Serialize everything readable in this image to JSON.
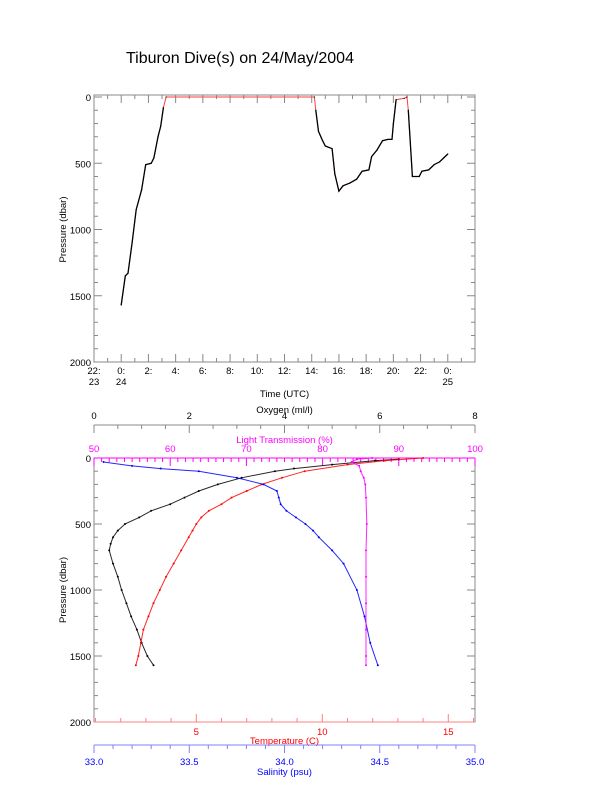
{
  "title": "Tiburon Dive(s) on 24/May/2004",
  "chart_data": [
    {
      "type": "line",
      "xlabel": "Time (UTC)",
      "ylabel": "Pressure (dbar)",
      "xlim_hours_from_0000_24May": [
        -2,
        26
      ],
      "ylim": [
        2000,
        0
      ],
      "x_tick_labels": [
        {
          "h": -2,
          "top": "22:",
          "bottom": "23"
        },
        {
          "h": 0,
          "top": "0:",
          "bottom": "24"
        },
        {
          "h": 2,
          "top": "2:",
          "bottom": ""
        },
        {
          "h": 4,
          "top": "4:",
          "bottom": ""
        },
        {
          "h": 6,
          "top": "6:",
          "bottom": ""
        },
        {
          "h": 8,
          "top": "8:",
          "bottom": ""
        },
        {
          "h": 10,
          "top": "10:",
          "bottom": ""
        },
        {
          "h": 12,
          "top": "12:",
          "bottom": ""
        },
        {
          "h": 14,
          "top": "14:",
          "bottom": ""
        },
        {
          "h": 16,
          "top": "16:",
          "bottom": ""
        },
        {
          "h": 18,
          "top": "18:",
          "bottom": ""
        },
        {
          "h": 20,
          "top": "20:",
          "bottom": ""
        },
        {
          "h": 22,
          "top": "22:",
          "bottom": ""
        },
        {
          "h": 24,
          "top": "0:",
          "bottom": "25"
        }
      ],
      "y_ticks": [
        0,
        500,
        1000,
        1500,
        2000
      ],
      "colors": {
        "line": "#000000",
        "overlay": "#ff4040"
      },
      "series": [
        {
          "x_hours": [
            0,
            0.3,
            0.5,
            0.8,
            1.1,
            1.5,
            1.8,
            2.2,
            2.4,
            2.7,
            2.9,
            3.1,
            3.3,
            14.2,
            14.3,
            14.5,
            14.8,
            15.0,
            15.5,
            15.7,
            16.0,
            16.3,
            16.8,
            17.3,
            17.7,
            18.2,
            18.4,
            18.8,
            19.2,
            19.6,
            19.9,
            20.0,
            20.2,
            20.8,
            21.0,
            21.1,
            21.4,
            21.9,
            22.1,
            22.6,
            23.0,
            23.4,
            23.7,
            24.0
          ],
          "pressure": [
            1570,
            1350,
            1330,
            1100,
            850,
            700,
            510,
            500,
            460,
            300,
            220,
            80,
            0,
            0,
            100,
            260,
            330,
            370,
            390,
            580,
            710,
            670,
            650,
            620,
            560,
            550,
            450,
            400,
            330,
            320,
            320,
            200,
            20,
            10,
            0,
            100,
            600,
            600,
            560,
            550,
            510,
            490,
            460,
            430
          ]
        }
      ]
    },
    {
      "type": "scatter",
      "ylabel": "Pressure (dbar)",
      "ylim": [
        2000,
        0
      ],
      "y_ticks": [
        0,
        500,
        1000,
        1500,
        2000
      ],
      "axes": {
        "oxygen": {
          "label": "Oxygen (ml/l)",
          "range": [
            0,
            8
          ],
          "ticks": [
            0,
            2,
            4,
            6,
            8
          ],
          "color": "#000000",
          "position": "top"
        },
        "light": {
          "label": "Light Transmission (%)",
          "range": [
            50,
            100
          ],
          "ticks": [
            50,
            60,
            70,
            80,
            90,
            100
          ],
          "color": "#ff00ff",
          "position": "top"
        },
        "temperature": {
          "label": "Temperature (C)",
          "range": [
            0.94,
            16.06
          ],
          "ticks": [
            5,
            10,
            15
          ],
          "color": "#ff0000",
          "position": "bottom"
        },
        "salinity": {
          "label": "Salinity (psu)",
          "range": [
            33.0,
            35.0
          ],
          "ticks": [
            "33.0",
            "33.5",
            "34.0",
            "34.5",
            "35.0"
          ],
          "color": "#0000ff",
          "position": "bottom"
        }
      },
      "series": [
        {
          "name": "Oxygen (ml/l)",
          "axis": "oxygen",
          "color": "#000000",
          "pressure": [
            10,
            20,
            50,
            80,
            100,
            150,
            200,
            250,
            300,
            350,
            400,
            450,
            500,
            550,
            600,
            650,
            700,
            800,
            900,
            1000,
            1100,
            1200,
            1300,
            1400,
            1500,
            1570
          ],
          "values": [
            6.4,
            5.9,
            5.0,
            4.2,
            3.8,
            3.1,
            2.6,
            2.2,
            1.9,
            1.6,
            1.2,
            0.95,
            0.65,
            0.5,
            0.4,
            0.35,
            0.32,
            0.4,
            0.5,
            0.58,
            0.68,
            0.78,
            0.9,
            1.0,
            1.12,
            1.25
          ]
        },
        {
          "name": "Temperature (C)",
          "axis": "temperature",
          "color": "#ff0000",
          "pressure": [
            0,
            20,
            50,
            100,
            150,
            200,
            250,
            300,
            350,
            400,
            450,
            500,
            550,
            600,
            700,
            800,
            900,
            1000,
            1100,
            1200,
            1300,
            1400,
            1500,
            1570
          ],
          "values": [
            14,
            12.5,
            11,
            9.3,
            8.4,
            7.6,
            7.0,
            6.4,
            6.0,
            5.5,
            5.2,
            5.0,
            4.85,
            4.7,
            4.4,
            4.1,
            3.8,
            3.55,
            3.3,
            3.1,
            2.9,
            2.8,
            2.7,
            2.6
          ]
        },
        {
          "name": "Salinity (psu)",
          "axis": "salinity",
          "color": "#0000ff",
          "pressure": [
            30,
            60,
            80,
            100,
            150,
            200,
            250,
            300,
            350,
            400,
            450,
            500,
            550,
            600,
            700,
            800,
            1000,
            1200,
            1400,
            1570
          ],
          "values": [
            33.05,
            33.2,
            33.35,
            33.55,
            33.75,
            33.89,
            33.96,
            33.97,
            33.98,
            34.01,
            34.06,
            34.11,
            34.15,
            34.18,
            34.25,
            34.31,
            34.38,
            34.42,
            34.45,
            34.49
          ]
        },
        {
          "name": "Light Transmission (%)",
          "axis": "light",
          "color": "#ff00ff",
          "pressure": [
            0,
            10,
            30,
            60,
            100,
            150,
            200,
            300,
            500,
            700,
            900,
            1100,
            1300,
            1500,
            1570
          ],
          "values": [
            86.5,
            84.5,
            83.8,
            84.8,
            85.0,
            85.4,
            85.6,
            85.7,
            85.8,
            85.7,
            85.7,
            85.7,
            85.7,
            85.7,
            85.7
          ]
        }
      ]
    }
  ]
}
